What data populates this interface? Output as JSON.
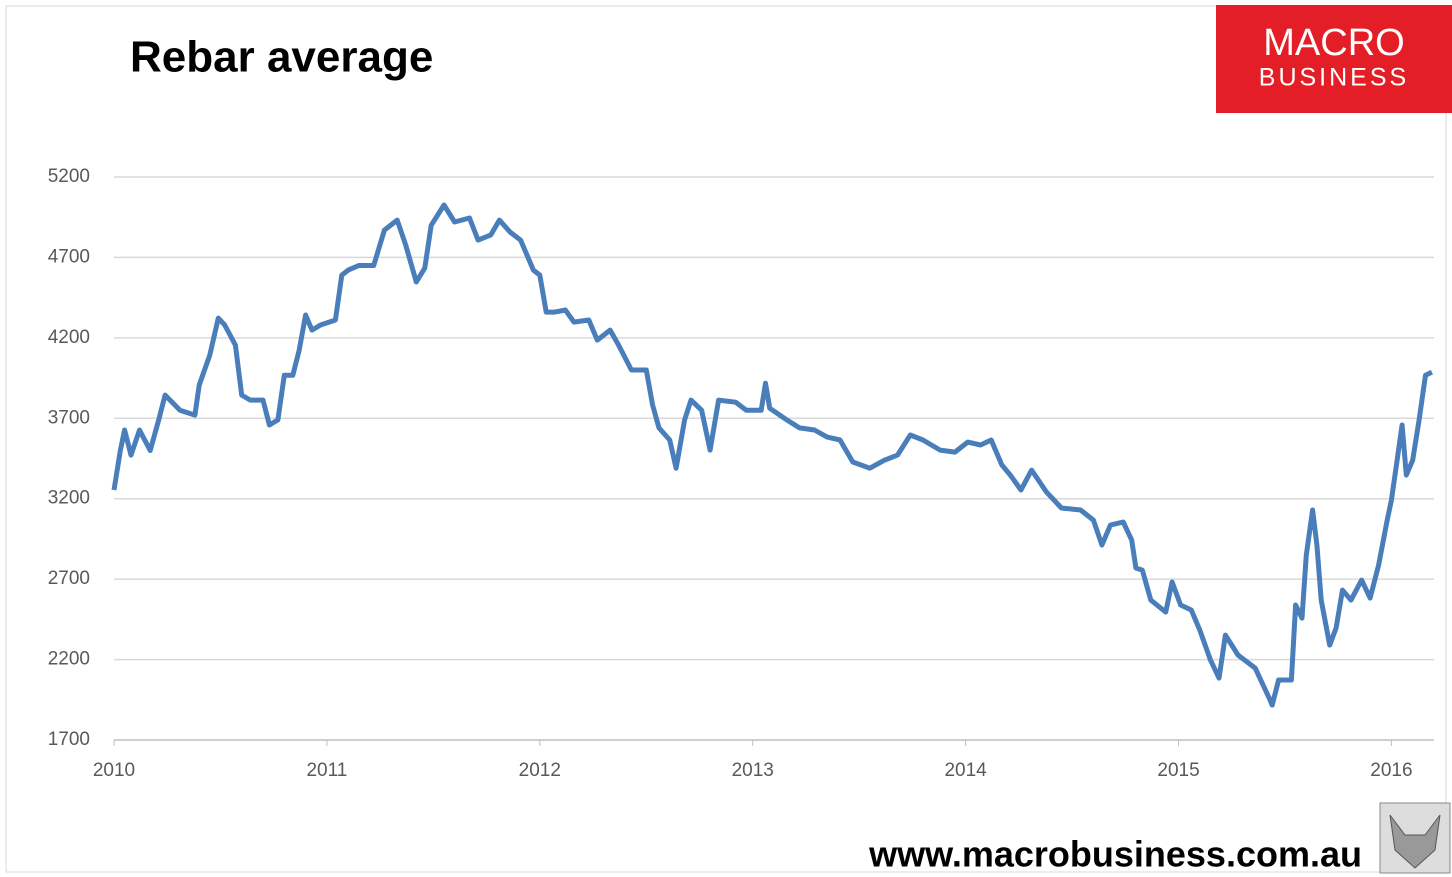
{
  "chart_data": {
    "type": "line",
    "title": "Rebar average",
    "logo": {
      "line1": "MACRO",
      "line2": "BUSINESS"
    },
    "footer": "www.macrobusiness.com.au",
    "xlim": [
      2010,
      2016.2
    ],
    "xticks": [
      2010,
      2011,
      2012,
      2013,
      2014,
      2015,
      2016
    ],
    "ylim": [
      1700,
      5200
    ],
    "yticks": [
      1700,
      2200,
      2700,
      3200,
      3700,
      4200,
      4700,
      5200
    ],
    "grid": true,
    "x": [
      2010.0,
      2010.03,
      2010.05,
      2010.08,
      2010.12,
      2010.17,
      2010.21,
      2010.24,
      2010.31,
      2010.38,
      2010.4,
      2010.45,
      2010.49,
      2010.52,
      2010.57,
      2010.6,
      2010.64,
      2010.7,
      2010.73,
      2010.77,
      2010.8,
      2010.84,
      2010.87,
      2010.9,
      2010.93,
      2010.97,
      2011.04,
      2011.07,
      2011.1,
      2011.15,
      2011.22,
      2011.27,
      2011.33,
      2011.37,
      2011.42,
      2011.46,
      2011.49,
      2011.55,
      2011.6,
      2011.67,
      2011.71,
      2011.77,
      2011.81,
      2011.86,
      2011.91,
      2011.97,
      2012.0,
      2012.03,
      2012.07,
      2012.12,
      2012.16,
      2012.23,
      2012.27,
      2012.33,
      2012.37,
      2012.43,
      2012.5,
      2012.53,
      2012.56,
      2012.61,
      2012.64,
      2012.68,
      2012.71,
      2012.76,
      2012.8,
      2012.84,
      2012.92,
      2012.97,
      2013.04,
      2013.06,
      2013.08,
      2013.16,
      2013.22,
      2013.29,
      2013.35,
      2013.41,
      2013.47,
      2013.55,
      2013.62,
      2013.68,
      2013.74,
      2013.8,
      2013.88,
      2013.95,
      2014.01,
      2014.07,
      2014.12,
      2014.17,
      2014.21,
      2014.26,
      2014.31,
      2014.38,
      2014.45,
      2014.54,
      2014.6,
      2014.64,
      2014.68,
      2014.74,
      2014.78,
      2014.8,
      2014.83,
      2014.87,
      2014.94,
      2014.97,
      2015.01,
      2015.06,
      2015.1,
      2015.15,
      2015.19,
      2015.22,
      2015.28,
      2015.36,
      2015.43,
      2015.44,
      2015.47,
      2015.53,
      2015.55,
      2015.58,
      2015.6,
      2015.63,
      2015.65,
      2015.67,
      2015.71,
      2015.74,
      2015.77,
      2015.81,
      2015.86,
      2015.9,
      2015.94,
      2015.98,
      2016.0,
      2016.02,
      2016.05,
      2016.07,
      2016.1,
      2016.13,
      2016.16,
      2016.19
    ],
    "series": [
      {
        "name": "Rebar average",
        "color": "#4a7ebb",
        "values": [
          3254,
          3502,
          3627,
          3471,
          3627,
          3500,
          3690,
          3844,
          3750,
          3720,
          3906,
          4093,
          4323,
          4280,
          4155,
          3844,
          3813,
          3813,
          3658,
          3690,
          3968,
          3968,
          4124,
          4342,
          4248,
          4280,
          4311,
          4590,
          4621,
          4650,
          4650,
          4870,
          4932,
          4777,
          4547,
          4634,
          4900,
          5026,
          4920,
          4945,
          4808,
          4840,
          4932,
          4858,
          4808,
          4621,
          4590,
          4360,
          4360,
          4373,
          4298,
          4311,
          4186,
          4248,
          4155,
          4000,
          4000,
          3782,
          3640,
          3565,
          3390,
          3690,
          3813,
          3750,
          3502,
          3813,
          3800,
          3750,
          3750,
          3918,
          3763,
          3690,
          3640,
          3627,
          3583,
          3565,
          3428,
          3390,
          3440,
          3471,
          3596,
          3565,
          3502,
          3490,
          3552,
          3534,
          3565,
          3410,
          3347,
          3254,
          3378,
          3241,
          3142,
          3130,
          3067,
          2912,
          3036,
          3055,
          2943,
          2769,
          2756,
          2570,
          2495,
          2682,
          2539,
          2508,
          2383,
          2197,
          2085,
          2352,
          2228,
          2147,
          1948,
          1917,
          2073,
          2073,
          2539,
          2458,
          2850,
          3130,
          2912,
          2570,
          2290,
          2396,
          2632,
          2570,
          2694,
          2582,
          2787,
          3067,
          3191,
          3378,
          3658,
          3347,
          3440,
          3690,
          3968,
          3987
        ]
      }
    ]
  }
}
